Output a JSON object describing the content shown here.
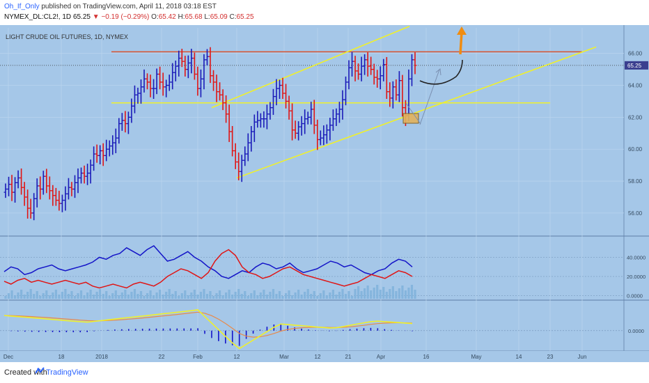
{
  "header": {
    "author": "Oh_If_Only",
    "published": "published on TradingView.com, April 11, 2018 03:18 EST",
    "symbol": "NYMEX_DL:CL2!, 1D",
    "last": "65.25",
    "change": "−0.19 (−0.29%)",
    "open_label": "O:",
    "open": "65.42",
    "high_label": "H:",
    "high": "65.68",
    "low_label": "L:",
    "low": "65.09",
    "close_label": "C:",
    "close": "65.25"
  },
  "footer": {
    "created_with": "Created with",
    "brand": "TradingView"
  },
  "colors": {
    "background": "#a5c7e8",
    "up": "#1a1ab8",
    "down": "#e01515",
    "trend": "#f0f02a",
    "resistance": "#d9522f"
  },
  "chart_data": {
    "type": "line",
    "title": "LIGHT CRUDE OIL FUTURES, 1D, NYMEX",
    "x_ticks": [
      "Dec",
      "18",
      "2018",
      "22",
      "Feb",
      "12",
      "Mar",
      "12",
      "21",
      "Apr",
      "16",
      "May",
      "14",
      "23",
      "Jun"
    ],
    "price_axis": {
      "ticks": [
        "56.00",
        "58.00",
        "60.00",
        "62.00",
        "64.00",
        "66.00"
      ],
      "ylim": [
        54.6,
        67.6
      ],
      "last_price_label": "65.25"
    },
    "ohlc_close_sequence": [
      57.5,
      57.8,
      57.3,
      57.9,
      58.2,
      57.6,
      57.0,
      56.3,
      56.0,
      56.9,
      57.7,
      57.5,
      58.3,
      57.7,
      57.4,
      57.1,
      56.8,
      56.6,
      56.8,
      57.2,
      57.6,
      57.5,
      57.9,
      58.2,
      58.5,
      58.3,
      58.5,
      59.0,
      59.7,
      59.6,
      59.9,
      59.6,
      60.0,
      60.2,
      60.4,
      60.7,
      61.6,
      61.8,
      61.6,
      62.0,
      62.7,
      63.4,
      63.5,
      63.9,
      64.4,
      64.2,
      63.8,
      63.8,
      64.7,
      64.2,
      63.9,
      64.0,
      64.2,
      64.8,
      65.2,
      65.7,
      65.5,
      65.0,
      65.4,
      65.7,
      64.7,
      63.8,
      64.4,
      65.6,
      65.8,
      64.6,
      64.2,
      63.6,
      63.4,
      62.9,
      62.2,
      61.1,
      59.9,
      59.2,
      58.6,
      59.3,
      59.7,
      60.4,
      61.1,
      61.7,
      61.8,
      61.9,
      61.9,
      62.2,
      62.6,
      63.3,
      63.8,
      64.0,
      63.5,
      63.0,
      62.4,
      61.2,
      61.0,
      61.4,
      61.6,
      61.9,
      62.0,
      62.5,
      61.5,
      60.6,
      60.7,
      60.9,
      61.2,
      61.5,
      61.9,
      62.2,
      62.5,
      63.1,
      64.2,
      65.1,
      65.5,
      64.9,
      64.7,
      65.2,
      65.6,
      65.2,
      65.0,
      64.5,
      64.4,
      64.6,
      65.3,
      63.6,
      63.2,
      63.9,
      63.4,
      64.3,
      62.6,
      62.1,
      64.4,
      65.6,
      65.25
    ],
    "annotations": {
      "resistance": 66.1,
      "support": 62.9,
      "channel_upper": [
        {
          "x": "Jan 19",
          "y": 62.6
        },
        {
          "x": "Apr 20",
          "y": 67.7
        }
      ],
      "channel_lower": [
        {
          "x": "Feb 12",
          "y": 58.2
        },
        {
          "x": "Jun 1",
          "y": 66.4
        }
      ]
    },
    "dmi": {
      "ticks": [
        "0.0000",
        "20.0000",
        "40.0000"
      ],
      "ylim": [
        -4,
        60
      ],
      "plus": [
        25,
        30,
        28,
        22,
        24,
        28,
        30,
        32,
        28,
        26,
        28,
        30,
        32,
        35,
        40,
        38,
        42,
        44,
        50,
        46,
        42,
        48,
        52,
        44,
        36,
        38,
        42,
        46,
        40,
        36,
        30,
        26,
        20,
        18,
        22,
        26,
        24,
        30,
        34,
        32,
        28,
        30,
        34,
        28,
        24,
        26,
        28,
        32,
        36,
        34,
        30,
        32,
        28,
        24,
        22,
        26,
        28,
        34,
        38,
        36,
        30
      ],
      "minus": [
        15,
        12,
        16,
        18,
        14,
        16,
        14,
        12,
        14,
        16,
        14,
        12,
        14,
        10,
        8,
        10,
        12,
        10,
        8,
        12,
        14,
        12,
        10,
        14,
        20,
        24,
        28,
        26,
        22,
        18,
        24,
        36,
        44,
        48,
        42,
        30,
        24,
        22,
        18,
        20,
        24,
        28,
        30,
        26,
        22,
        20,
        18,
        16,
        14,
        12,
        10,
        12,
        14,
        18,
        22,
        20,
        18,
        22,
        26,
        24,
        20
      ]
    },
    "macd": {
      "ticks": [
        "0.0000"
      ],
      "ylim": [
        -2,
        3
      ]
    }
  }
}
